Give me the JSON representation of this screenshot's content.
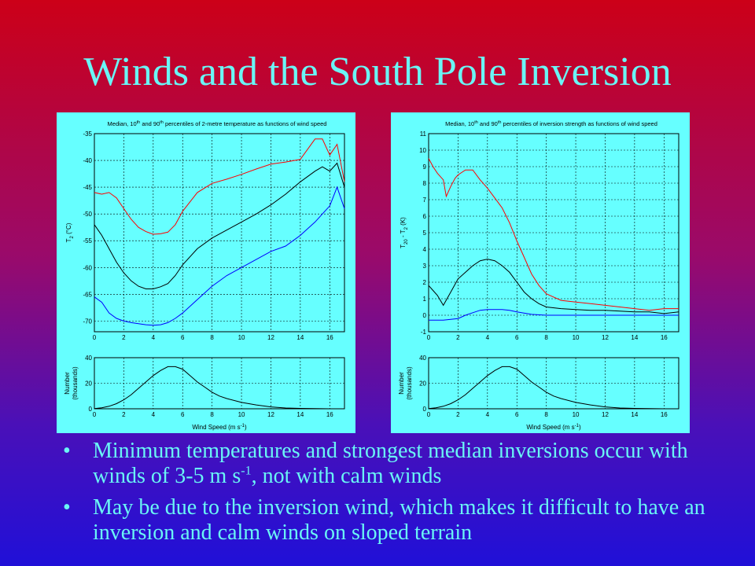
{
  "slide": {
    "title": "Winds and the South Pole Inversion",
    "background_top": "#cc0018",
    "background_bottom": "#2010d8",
    "text_color": "#6af5f5",
    "bullet_glyph": "•",
    "bullets": [
      {
        "text_a": "Minimum temperatures and strongest median inversions occur with winds of 3-5 m s",
        "sup": "-1",
        "text_b": ", not with calm winds"
      },
      {
        "text_a": "May be due to the inversion wind, which makes it difficult to have an inversion and calm winds on sloped terrain",
        "sup": "",
        "text_b": ""
      }
    ]
  },
  "chart_data": [
    {
      "type": "line",
      "title_pre": "Median, 10",
      "title_sup1": "th",
      "title_mid": " and 90",
      "title_sup2": "th",
      "title_post": " percentiles of 2-metre temperature as functions of wind speed",
      "ylabel": "T",
      "ylabel_sub": "2",
      "ylabel_post": " (°C)",
      "xlim": [
        0,
        17
      ],
      "ylim": [
        -72,
        -35
      ],
      "yticks": [
        -70,
        -65,
        -60,
        -55,
        -50,
        -45,
        -40,
        -35
      ],
      "xticks": [
        0,
        2,
        4,
        6,
        8,
        10,
        12,
        14,
        16
      ],
      "series": [
        {
          "color": "#ff0000",
          "x": [
            0,
            0.5,
            1,
            1.5,
            2,
            2.5,
            3,
            3.5,
            4,
            4.5,
            5,
            5.5,
            6,
            7,
            8,
            9,
            10,
            11,
            12,
            13,
            14,
            15,
            15.5,
            16,
            16.5,
            17
          ],
          "y": [
            -46,
            -46.3,
            -46,
            -47,
            -49,
            -51,
            -52.5,
            -53.3,
            -53.8,
            -53.7,
            -53.4,
            -52,
            -49.5,
            -46,
            -44.3,
            -43.5,
            -42.6,
            -41.6,
            -40.7,
            -40.3,
            -39.8,
            -36,
            -36,
            -39,
            -37,
            -44
          ]
        },
        {
          "color": "#000000",
          "x": [
            0,
            0.5,
            1,
            1.5,
            2,
            2.5,
            3,
            3.5,
            4,
            4.5,
            5,
            5.5,
            6,
            7,
            8,
            9,
            10,
            11,
            12,
            13,
            14,
            15,
            15.5,
            16,
            16.5,
            17
          ],
          "y": [
            -52,
            -54,
            -56.5,
            -59,
            -61,
            -62.5,
            -63.5,
            -64,
            -64,
            -63.6,
            -63,
            -61.5,
            -59.5,
            -56.5,
            -54.5,
            -53,
            -51.5,
            -50,
            -48.3,
            -46.3,
            -44,
            -42,
            -41.2,
            -42,
            -40.5,
            -45
          ]
        },
        {
          "color": "#0000ff",
          "x": [
            0,
            0.5,
            1,
            1.5,
            2,
            2.5,
            3,
            3.5,
            4,
            4.5,
            5,
            5.5,
            6,
            7,
            8,
            9,
            10,
            11,
            12,
            13,
            14,
            15,
            15.5,
            16,
            16.5,
            17
          ],
          "y": [
            -65.5,
            -66.5,
            -68.5,
            -69.5,
            -70,
            -70.3,
            -70.5,
            -70.7,
            -70.8,
            -70.7,
            -70.3,
            -69.5,
            -68.5,
            -66,
            -63.5,
            -61.5,
            -60,
            -58.5,
            -57,
            -56,
            -54,
            -51.5,
            -50,
            -48.5,
            -45,
            -49
          ]
        }
      ]
    },
    {
      "type": "line",
      "title_pre": "Median, 10",
      "title_sup1": "th",
      "title_mid": " and 90",
      "title_sup2": "th",
      "title_post": " percentiles of inversion strength as functions of wind speed",
      "ylabel": "T",
      "ylabel_sub": "20",
      "ylabel_post": " - T",
      "ylabel_sub2": "2",
      "ylabel_post2": " (K)",
      "xlim": [
        0,
        17
      ],
      "ylim": [
        -1,
        11
      ],
      "yticks": [
        -1,
        0,
        1,
        2,
        3,
        4,
        5,
        6,
        7,
        8,
        9,
        10,
        11
      ],
      "xticks": [
        0,
        2,
        4,
        6,
        8,
        10,
        12,
        14,
        16
      ],
      "series": [
        {
          "color": "#ff0000",
          "x": [
            0,
            0.3,
            0.6,
            1,
            1.2,
            1.5,
            1.8,
            2,
            2.5,
            3,
            3.5,
            4,
            4.5,
            5,
            5.5,
            6,
            6.5,
            7,
            7.5,
            8,
            8.5,
            9,
            10,
            11,
            12,
            13,
            14,
            15,
            16,
            17
          ],
          "y": [
            9.5,
            9,
            8.6,
            8.2,
            7.2,
            7.8,
            8.3,
            8.5,
            8.8,
            8.8,
            8.2,
            7.7,
            7.1,
            6.5,
            5.6,
            4.5,
            3.5,
            2.5,
            1.8,
            1.3,
            1.1,
            0.9,
            0.8,
            0.7,
            0.6,
            0.5,
            0.4,
            0.3,
            0.4,
            0.4
          ]
        },
        {
          "color": "#000000",
          "x": [
            0,
            0.3,
            0.6,
            1,
            1.5,
            2,
            2.5,
            3,
            3.5,
            4,
            4.5,
            5,
            5.5,
            6,
            6.5,
            7,
            7.5,
            8,
            9,
            10,
            11,
            12,
            13,
            14,
            15,
            16,
            17
          ],
          "y": [
            1.8,
            1.5,
            1.2,
            0.6,
            1.4,
            2.2,
            2.6,
            3,
            3.3,
            3.4,
            3.3,
            3,
            2.6,
            2,
            1.4,
            1,
            0.7,
            0.5,
            0.4,
            0.35,
            0.3,
            0.3,
            0.25,
            0.2,
            0.2,
            0.1,
            0.2
          ]
        },
        {
          "color": "#0000ff",
          "x": [
            0,
            0.5,
            1,
            1.5,
            2,
            2.5,
            3,
            3.5,
            4,
            4.5,
            5,
            5.5,
            6,
            7,
            8,
            9,
            10,
            11,
            12,
            13,
            14,
            15,
            16,
            17
          ],
          "y": [
            -0.3,
            -0.3,
            -0.3,
            -0.25,
            -0.2,
            0,
            0.15,
            0.3,
            0.35,
            0.35,
            0.35,
            0.3,
            0.2,
            0.05,
            0,
            0,
            0,
            0,
            0,
            0,
            0,
            0,
            0,
            0
          ]
        }
      ]
    },
    {
      "type": "line",
      "ylabel": "Number",
      "ylabel2": "(thousands)",
      "xlabel": "Wind Speed (m s",
      "xlabel_sup": "-1",
      "xlabel_post": ")",
      "xlim": [
        0,
        17
      ],
      "ylim": [
        0,
        40
      ],
      "yticks": [
        0,
        20,
        40
      ],
      "xticks": [
        0,
        2,
        4,
        6,
        8,
        10,
        12,
        14,
        16
      ],
      "series": [
        {
          "color": "#000000",
          "x": [
            0,
            0.5,
            1,
            1.5,
            2,
            2.5,
            3,
            3.5,
            4,
            4.5,
            5,
            5.5,
            6,
            6.5,
            7,
            7.5,
            8,
            8.5,
            9,
            10,
            11,
            12,
            13,
            14,
            15,
            16,
            17
          ],
          "y": [
            0.2,
            0.8,
            2,
            4,
            7,
            11,
            16,
            21,
            26,
            30,
            33,
            33,
            31,
            26,
            21,
            17,
            13,
            10,
            8,
            5,
            3,
            1.5,
            0.6,
            0.3,
            0.1,
            0,
            0
          ]
        }
      ]
    }
  ]
}
